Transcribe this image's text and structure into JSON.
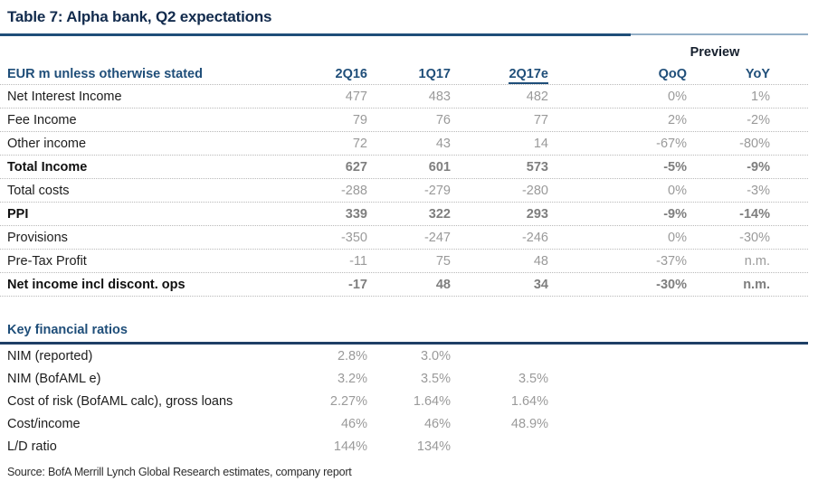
{
  "title": "Table 7: Alpha bank, Q2 expectations",
  "preview_label": "Preview",
  "main_table": {
    "unit_label": "EUR m unless otherwise stated",
    "columns": [
      "2Q16",
      "1Q17",
      "2Q17e",
      "QoQ",
      "YoY"
    ],
    "rows": [
      {
        "label": "Net Interest Income",
        "bold": false,
        "values": [
          "477",
          "483",
          "482",
          "0%",
          "1%"
        ]
      },
      {
        "label": "Fee Income",
        "bold": false,
        "values": [
          "79",
          "76",
          "77",
          "2%",
          "-2%"
        ]
      },
      {
        "label": "Other income",
        "bold": false,
        "values": [
          "72",
          "43",
          "14",
          "-67%",
          "-80%"
        ]
      },
      {
        "label": "Total Income",
        "bold": true,
        "values": [
          "627",
          "601",
          "573",
          "-5%",
          "-9%"
        ]
      },
      {
        "label": "Total costs",
        "bold": false,
        "values": [
          "-288",
          "-279",
          "-280",
          "0%",
          "-3%"
        ]
      },
      {
        "label": "PPI",
        "bold": true,
        "values": [
          "339",
          "322",
          "293",
          "-9%",
          "-14%"
        ]
      },
      {
        "label": "Provisions",
        "bold": false,
        "values": [
          "-350",
          "-247",
          "-246",
          "0%",
          "-30%"
        ]
      },
      {
        "label": "Pre-Tax Profit",
        "bold": false,
        "values": [
          "-11",
          "75",
          "48",
          "-37%",
          "n.m."
        ]
      },
      {
        "label": "Net income incl discont. ops",
        "bold": true,
        "values": [
          "-17",
          "48",
          "34",
          "-30%",
          "n.m."
        ]
      }
    ]
  },
  "ratios_table": {
    "heading": "Key financial ratios",
    "rows": [
      {
        "label": "NIM (reported)",
        "bold": false,
        "values": [
          "2.8%",
          "3.0%",
          "",
          "",
          ""
        ]
      },
      {
        "label": "NIM (BofAML e)",
        "bold": false,
        "values": [
          "3.2%",
          "3.5%",
          "3.5%",
          "",
          ""
        ]
      },
      {
        "label": "Cost of risk (BofAML calc), gross loans",
        "bold": false,
        "values": [
          "2.27%",
          "1.64%",
          "1.64%",
          "",
          ""
        ]
      },
      {
        "label": "Cost/income",
        "bold": false,
        "values": [
          "46%",
          "46%",
          "48.9%",
          "",
          ""
        ]
      },
      {
        "label": "L/D ratio",
        "bold": false,
        "values": [
          "144%",
          "134%",
          "",
          "",
          ""
        ]
      }
    ]
  },
  "source": "Source: BofA Merrill Lynch Global Research estimates, company report",
  "colors": {
    "title_text": "#122b4d",
    "rule_navy": "#1f4e79",
    "rule_steel": "#94afc7",
    "ratios_rule": "#1e3f66",
    "header_blue": "#1f4e79",
    "unit_label_blue": "#3565a6",
    "value_gray": "#9a9a9a",
    "value_gray_bold": "#7e7e7e",
    "dotted_line": "#b9b9b9"
  }
}
